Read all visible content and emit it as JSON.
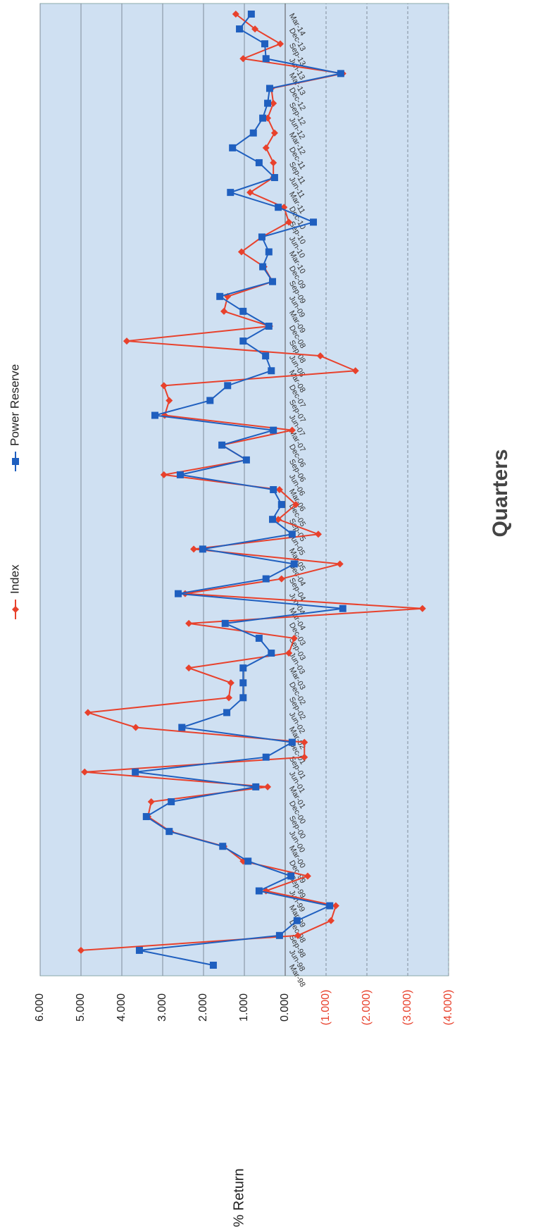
{
  "chart_data": {
    "type": "line",
    "y_label": "% Return",
    "x_label": "Quarters",
    "categories": [
      "Mar-98",
      "Jun-98",
      "Sep-98",
      "Dec-98",
      "Mar-99",
      "Jun-99",
      "Sep-99",
      "Dec-99",
      "Mar-00",
      "Jun-00",
      "Sep-00",
      "Dec-00",
      "Mar-01",
      "Jun-01",
      "Sep-01",
      "Dec-01",
      "Mar-02",
      "Jun-02",
      "Sep-02",
      "Dec-02",
      "Mar-03",
      "Jun-03",
      "Sep-03",
      "Dec-03",
      "Mar-04",
      "Jun-04",
      "Sep-04",
      "Dec-04",
      "Mar-05",
      "Jun-05",
      "Sep-05",
      "Dec-05",
      "Mar-06",
      "Jun-06",
      "Sep-06",
      "Dec-06",
      "Mar-07",
      "Jun-07",
      "Sep-07",
      "Dec-07",
      "Mar-08",
      "Jun-08",
      "Sep-08",
      "Dec-08",
      "Mar-09",
      "Jun-09",
      "Sep-09",
      "Dec-09",
      "Mar-10",
      "Jun-10",
      "Sep-10",
      "Dec-10",
      "Mar-11",
      "Jun-11",
      "Sep-11",
      "Dec-11",
      "Mar-12",
      "Jun-12",
      "Sep-12",
      "Dec-12",
      "Mar-13",
      "Jun-13",
      "Sep-13",
      "Dec-13",
      "Mar-14"
    ],
    "series": [
      {
        "name": "Index",
        "color": "#e8412c",
        "marker": "diamond",
        "values": [
          null,
          5.0,
          -0.31,
          -1.12,
          -1.24,
          0.47,
          -0.55,
          1.03,
          1.5,
          2.81,
          3.36,
          3.28,
          0.43,
          4.91,
          -0.47,
          -0.47,
          3.66,
          4.83,
          1.38,
          1.33,
          2.36,
          -0.09,
          -0.22,
          2.36,
          -3.36,
          2.45,
          0.09,
          -1.34,
          2.24,
          -0.81,
          0.17,
          -0.26,
          0.14,
          2.97,
          0.95,
          1.55,
          -0.17,
          2.95,
          2.84,
          2.97,
          -1.72,
          -0.86,
          3.88,
          0.38,
          1.5,
          1.41,
          0.31,
          0.52,
          1.07,
          0.57,
          -0.09,
          0.03,
          0.86,
          0.29,
          0.29,
          0.47,
          0.26,
          0.43,
          0.29,
          0.34,
          -1.41,
          1.03,
          0.12,
          0.74,
          1.21
        ]
      },
      {
        "name": "Power Reserve",
        "color": "#1f5fbf",
        "marker": "square",
        "values": [
          1.76,
          3.57,
          0.14,
          -0.29,
          -1.09,
          0.64,
          -0.14,
          0.91,
          1.53,
          2.84,
          3.4,
          2.79,
          0.72,
          3.67,
          0.47,
          -0.17,
          2.53,
          1.43,
          1.03,
          1.03,
          1.03,
          0.34,
          0.64,
          1.47,
          -1.41,
          2.62,
          0.47,
          -0.22,
          2.02,
          -0.17,
          0.31,
          0.09,
          0.29,
          2.57,
          0.95,
          1.55,
          0.29,
          3.19,
          1.84,
          1.41,
          0.34,
          0.48,
          1.03,
          0.4,
          1.03,
          1.6,
          0.31,
          0.55,
          0.4,
          0.57,
          -0.69,
          0.17,
          1.34,
          0.26,
          0.64,
          1.29,
          0.78,
          0.55,
          0.43,
          0.38,
          -1.36,
          0.47,
          0.5,
          1.12,
          0.83
        ]
      }
    ],
    "ylim": [
      -4,
      6
    ],
    "yticks": [
      {
        "value": 6,
        "label": "6.000"
      },
      {
        "value": 5,
        "label": "5.000"
      },
      {
        "value": 4,
        "label": "4.000"
      },
      {
        "value": 3,
        "label": "3.000"
      },
      {
        "value": 2,
        "label": "2.000"
      },
      {
        "value": 1,
        "label": "1.000"
      },
      {
        "value": 0,
        "label": "0.000"
      },
      {
        "value": -1,
        "label": "(1.000)"
      },
      {
        "value": -2,
        "label": "(2.000)"
      },
      {
        "value": -3,
        "label": "(3.000)"
      },
      {
        "value": -4,
        "label": "(4.000)"
      }
    ],
    "grid": true,
    "negative_label_color": "#e8412c",
    "plot_background": "#cfe0f2",
    "rotated": true
  }
}
